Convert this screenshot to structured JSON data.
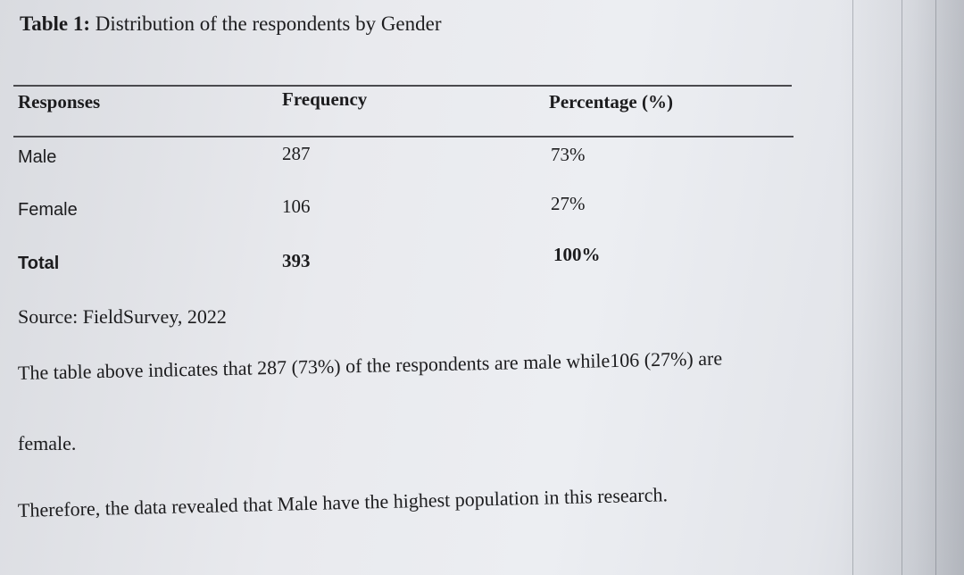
{
  "caption": {
    "label": "Table 1:",
    "title": "Distribution of the respondents by Gender"
  },
  "table": {
    "headers": [
      "Responses",
      "Frequency",
      "Percentage (%)"
    ],
    "rows": [
      {
        "response": "Male",
        "frequency": "287",
        "percentage": "73%"
      },
      {
        "response": "Female",
        "frequency": "106",
        "percentage": "27%"
      },
      {
        "response": "Total",
        "frequency": "393",
        "percentage": "100%"
      }
    ]
  },
  "source": "Source: FieldSurvey, 2022",
  "paragraphs": {
    "line1": "The table above indicates that 287 (73%) of the respondents are male while106 (27%) are",
    "line2": "female.",
    "line3": "Therefore, the data revealed that Male have the highest population in this research."
  }
}
